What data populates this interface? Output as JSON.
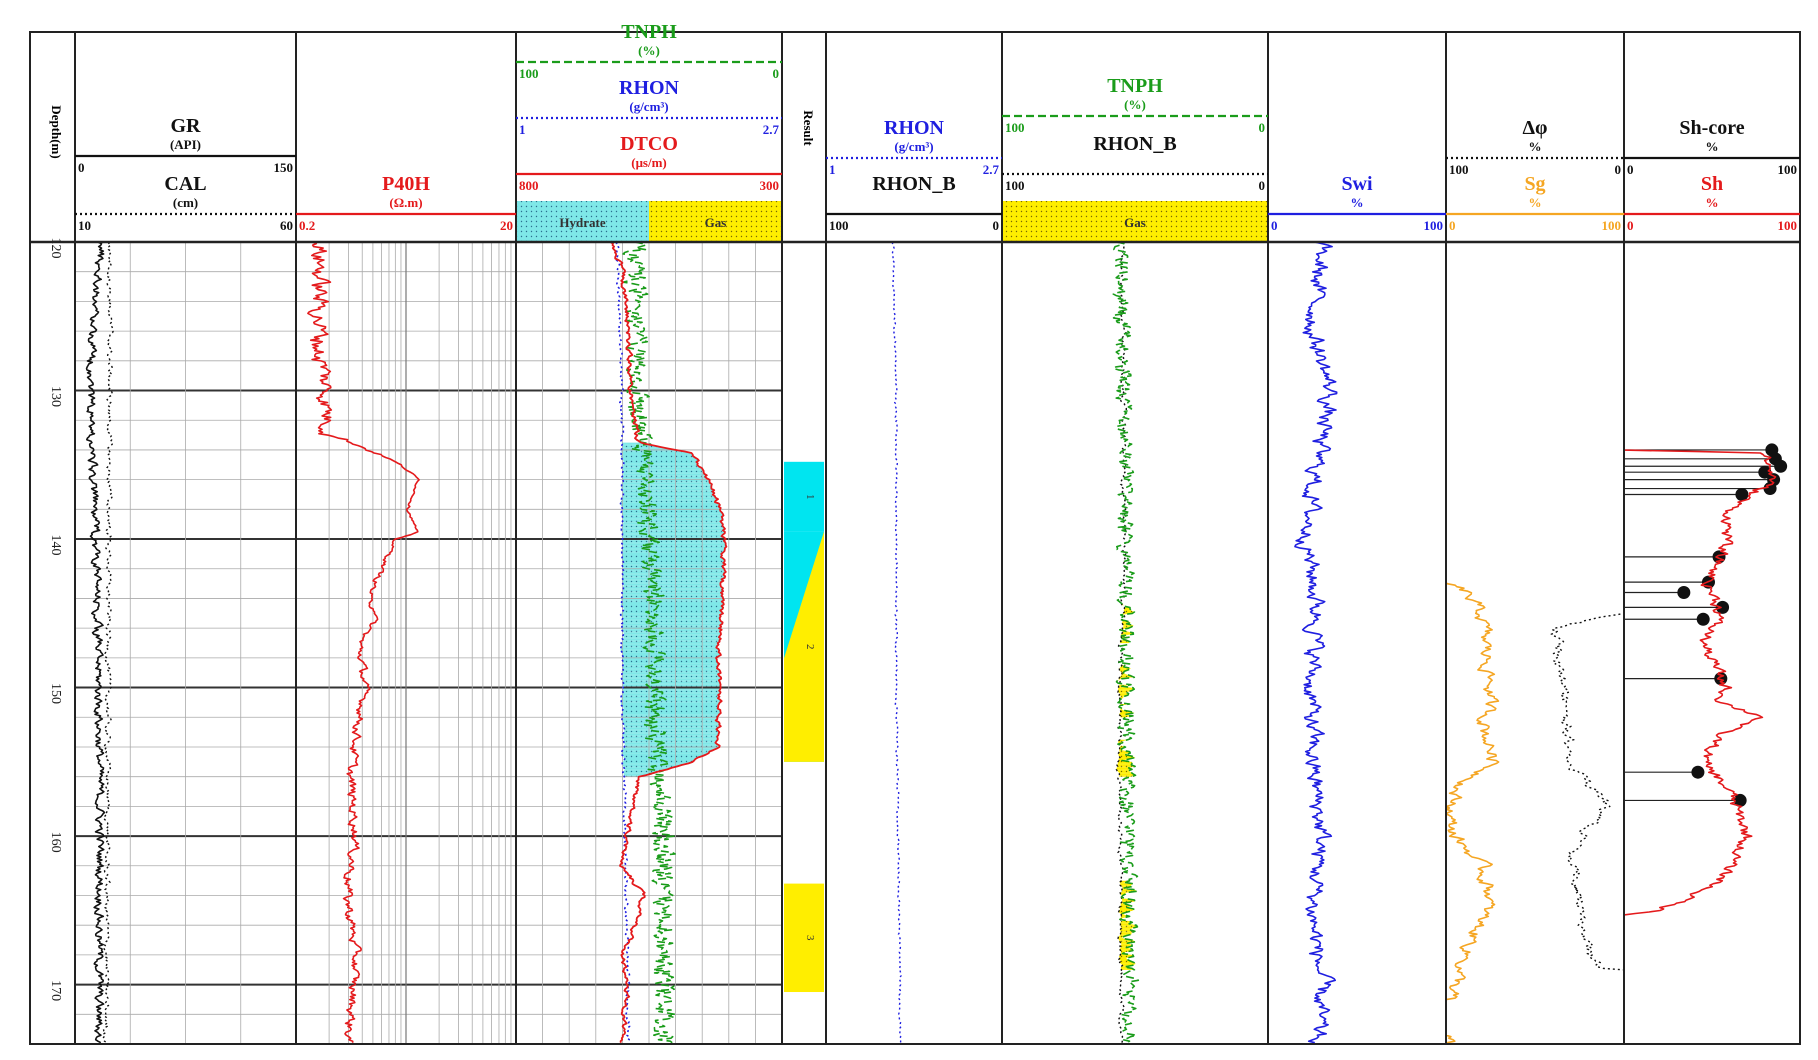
{
  "chart_data": {
    "type": "line",
    "depth_axis": {
      "label": "Depth(m)",
      "ticks": [
        "120",
        "130",
        "140",
        "150",
        "160",
        "170"
      ],
      "range": [
        120,
        174
      ]
    },
    "tracks": [
      {
        "headers": [
          {
            "name": "GR",
            "unit": "(API)",
            "min": "0",
            "max": "150",
            "color": "#111111",
            "style": "solid"
          },
          {
            "name": "CAL",
            "unit": "(cm)",
            "min": "10",
            "max": "60",
            "color": "#111111",
            "style": "dotted"
          }
        ]
      },
      {
        "headers": [
          {
            "name": "P40H",
            "unit": "(Ω.m)",
            "min": "0.2",
            "max": "20",
            "color": "#e41a1c",
            "style": "solid"
          }
        ],
        "scale": "log"
      },
      {
        "headers": [
          {
            "name": "TNPH",
            "unit": "(%)",
            "min": "100",
            "max": "0",
            "color": "#1a9c1a",
            "style": "dashed"
          },
          {
            "name": "RHON",
            "unit": "(g/cm³)",
            "min": "1",
            "max": "2.7",
            "color": "#1f1fe0",
            "style": "dotted"
          },
          {
            "name": "DTCO",
            "unit": "(μs/m)",
            "min": "800",
            "max": "300",
            "color": "#e41a1c",
            "style": "solid"
          }
        ],
        "legend": [
          "Hydrate",
          "Gas"
        ]
      },
      {
        "headers": [
          {
            "name": "Result"
          }
        ],
        "zones": [
          {
            "label": "1",
            "top": 134.8,
            "bottom": 139.5,
            "type": "hydrate"
          },
          {
            "label": "2",
            "top": 139.5,
            "bottom": 155.0,
            "type": "hydrate-gas"
          },
          {
            "label": "3",
            "top": 163.2,
            "bottom": 170.5,
            "type": "gas"
          }
        ]
      },
      {
        "headers": [
          {
            "name": "RHON",
            "unit": "(g/cm³)",
            "min": "1",
            "max": "2.7",
            "color": "#1f1fe0",
            "style": "dotted"
          },
          {
            "name": "RHON_B",
            "unit": "",
            "min": "100",
            "max": "0",
            "color": "#111111",
            "style": "solid"
          }
        ]
      },
      {
        "headers": [
          {
            "name": "TNPH",
            "unit": "(%)",
            "min": "100",
            "max": "0",
            "color": "#1a9c1a",
            "style": "dashed"
          },
          {
            "name": "RHON_B",
            "unit": "",
            "min": "100",
            "max": "0",
            "color": "#111111",
            "style": "dotted"
          }
        ],
        "legend": [
          "Gas"
        ]
      },
      {
        "headers": [
          {
            "name": "Swi",
            "unit": "%",
            "min": "0",
            "max": "100",
            "color": "#1f1fe0",
            "style": "solid"
          }
        ]
      },
      {
        "headers": [
          {
            "name": "Δφ",
            "unit": "%",
            "min": "100",
            "max": "0",
            "color": "#111111",
            "style": "dotted"
          },
          {
            "name": "Sg",
            "unit": "%",
            "min": "0",
            "max": "100",
            "color": "#f5a623",
            "style": "solid"
          }
        ]
      },
      {
        "headers": [
          {
            "name": "Sh-core",
            "unit": "%",
            "min": "0",
            "max": "100",
            "color": "#111111",
            "style": "solid"
          },
          {
            "name": "Sh",
            "unit": "%",
            "min": "0",
            "max": "100",
            "color": "#e41a1c",
            "style": "solid"
          }
        ]
      }
    ],
    "sh_core_points": [
      {
        "depth": 134.0,
        "value": 84
      },
      {
        "depth": 134.6,
        "value": 86
      },
      {
        "depth": 135.1,
        "value": 89
      },
      {
        "depth": 135.5,
        "value": 80
      },
      {
        "depth": 136.0,
        "value": 85
      },
      {
        "depth": 136.6,
        "value": 83
      },
      {
        "depth": 137.0,
        "value": 67
      },
      {
        "depth": 141.2,
        "value": 54
      },
      {
        "depth": 142.9,
        "value": 48
      },
      {
        "depth": 143.6,
        "value": 34
      },
      {
        "depth": 144.6,
        "value": 56
      },
      {
        "depth": 145.4,
        "value": 45
      },
      {
        "depth": 149.4,
        "value": 55
      },
      {
        "depth": 155.7,
        "value": 42
      },
      {
        "depth": 157.6,
        "value": 66
      }
    ]
  }
}
